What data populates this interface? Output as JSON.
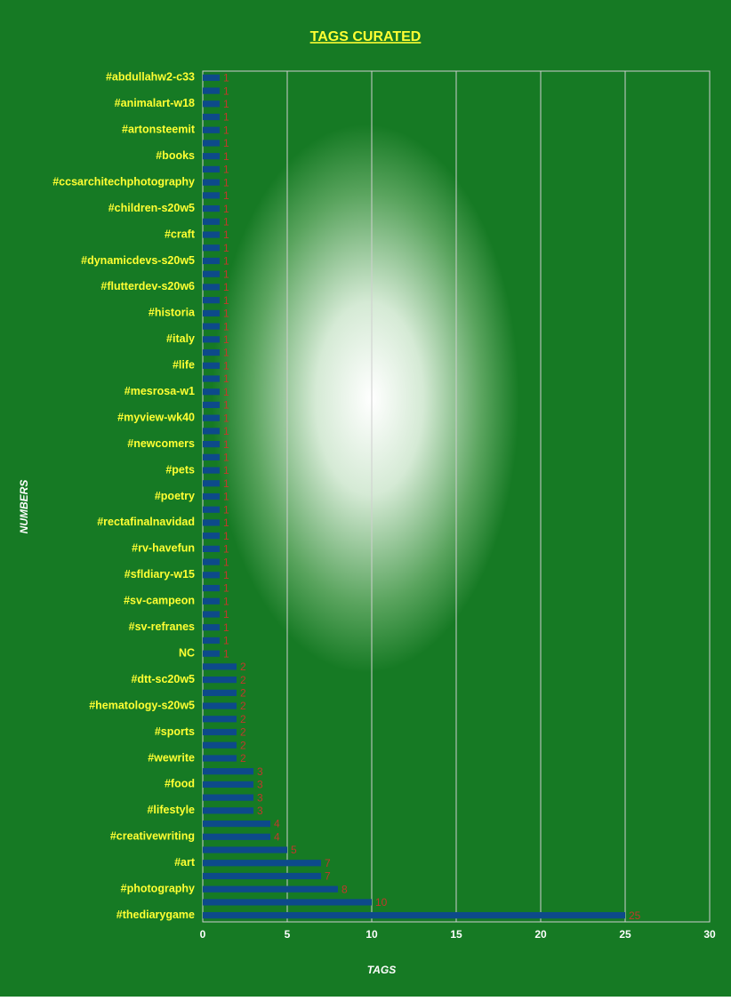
{
  "chart_data": {
    "type": "bar",
    "orientation": "horizontal",
    "title": "TAGS CURATED",
    "x_label": "TAGS",
    "y_label": "NUMBERS",
    "categories": [
      "#abdullahw2-c33",
      null,
      "#animalart-w18",
      null,
      "#artonsteemit",
      null,
      "#books",
      null,
      "#ccsarchitechphotography",
      null,
      "#children-s20w5",
      null,
      "#craft",
      null,
      "#dynamicdevs-s20w5",
      null,
      "#flutterdev-s20w6",
      null,
      "#historia",
      null,
      "#italy",
      null,
      "#life",
      null,
      "#mesrosa-w1",
      null,
      "#myview-wk40",
      null,
      "#newcomers",
      null,
      "#pets",
      null,
      "#poetry",
      null,
      "#rectafinalnavidad",
      null,
      "#rv-havefun",
      null,
      "#sfldiary-w15",
      null,
      "#sv-campeon",
      null,
      "#sv-refranes",
      null,
      "NC",
      null,
      "#dtt-sc20w5",
      null,
      "#hematology-s20w5",
      null,
      "#sports",
      null,
      "#wewrite",
      null,
      "#food",
      null,
      "#lifestyle",
      null,
      "#creativewriting",
      null,
      "#art",
      null,
      "#photography",
      null,
      "#thediarygame"
    ],
    "values": [
      1,
      1,
      1,
      1,
      1,
      1,
      1,
      1,
      1,
      1,
      1,
      1,
      1,
      1,
      1,
      1,
      1,
      1,
      1,
      1,
      1,
      1,
      1,
      1,
      1,
      1,
      1,
      1,
      1,
      1,
      1,
      1,
      1,
      1,
      1,
      1,
      1,
      1,
      1,
      1,
      1,
      1,
      1,
      1,
      1,
      2,
      2,
      2,
      2,
      2,
      2,
      2,
      2,
      3,
      3,
      3,
      3,
      4,
      4,
      5,
      7,
      7,
      8,
      10,
      25
    ],
    "color": "#0d4a8a",
    "label_color": "#c0392b",
    "xlim": [
      0,
      30
    ],
    "xticks": [
      0,
      5,
      10,
      15,
      20,
      25,
      30
    ],
    "grid": true
  }
}
